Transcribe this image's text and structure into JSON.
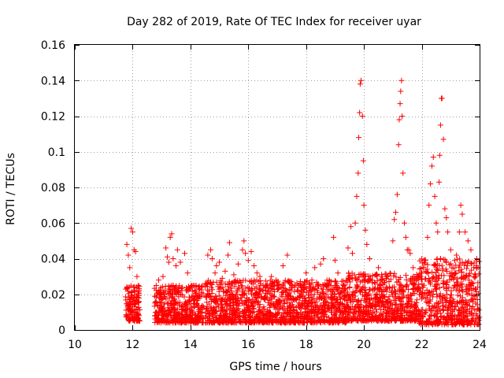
{
  "chart_data": {
    "type": "scatter",
    "title": "Day 282 of 2019, Rate Of TEC Index for receiver uyar",
    "xlabel": "GPS time / hours",
    "ylabel": "ROTI / TECUs",
    "xlim": [
      10,
      24
    ],
    "ylim": [
      0,
      0.16
    ],
    "x_ticks": [
      "10",
      "12",
      "14",
      "16",
      "18",
      "20",
      "22",
      "24"
    ],
    "y_ticks": [
      "0",
      "0.02",
      "0.04",
      "0.06",
      "0.08",
      "0.1",
      "0.12",
      "0.14",
      "0.16"
    ],
    "grid": true,
    "marker": "+",
    "series_color": "#ff0000",
    "series": [
      {
        "name": "ROTI",
        "points": [
          [
            11.8,
            0.048
          ],
          [
            11.85,
            0.042
          ],
          [
            11.9,
            0.035
          ],
          [
            11.95,
            0.057
          ],
          [
            12.0,
            0.055
          ],
          [
            12.05,
            0.045
          ],
          [
            12.1,
            0.044
          ],
          [
            12.15,
            0.03
          ],
          [
            12.2,
            0.025
          ],
          [
            12.9,
            0.028
          ],
          [
            13.05,
            0.03
          ],
          [
            13.15,
            0.046
          ],
          [
            13.2,
            0.041
          ],
          [
            13.25,
            0.038
          ],
          [
            13.3,
            0.052
          ],
          [
            13.35,
            0.054
          ],
          [
            13.4,
            0.04
          ],
          [
            13.5,
            0.036
          ],
          [
            13.55,
            0.045
          ],
          [
            13.65,
            0.038
          ],
          [
            13.8,
            0.043
          ],
          [
            13.9,
            0.032
          ],
          [
            14.6,
            0.042
          ],
          [
            14.7,
            0.045
          ],
          [
            14.75,
            0.04
          ],
          [
            14.85,
            0.032
          ],
          [
            14.9,
            0.036
          ],
          [
            15.0,
            0.038
          ],
          [
            15.1,
            0.029
          ],
          [
            15.2,
            0.033
          ],
          [
            15.3,
            0.042
          ],
          [
            15.35,
            0.049
          ],
          [
            15.5,
            0.031
          ],
          [
            15.65,
            0.037
          ],
          [
            15.8,
            0.045
          ],
          [
            15.85,
            0.05
          ],
          [
            15.9,
            0.043
          ],
          [
            16.0,
            0.039
          ],
          [
            16.1,
            0.044
          ],
          [
            16.2,
            0.036
          ],
          [
            16.3,
            0.032
          ],
          [
            16.4,
            0.03
          ],
          [
            16.6,
            0.022
          ],
          [
            16.8,
            0.03
          ],
          [
            17.0,
            0.025
          ],
          [
            17.2,
            0.036
          ],
          [
            17.35,
            0.042
          ],
          [
            17.5,
            0.027
          ],
          [
            17.8,
            0.025
          ],
          [
            18.0,
            0.032
          ],
          [
            18.2,
            0.028
          ],
          [
            18.3,
            0.035
          ],
          [
            18.5,
            0.037
          ],
          [
            18.6,
            0.04
          ],
          [
            18.8,
            0.028
          ],
          [
            18.95,
            0.052
          ],
          [
            19.0,
            0.039
          ],
          [
            19.1,
            0.032
          ],
          [
            19.3,
            0.025
          ],
          [
            19.45,
            0.046
          ],
          [
            19.55,
            0.058
          ],
          [
            19.6,
            0.043
          ],
          [
            19.7,
            0.06
          ],
          [
            19.75,
            0.075
          ],
          [
            19.8,
            0.088
          ],
          [
            19.82,
            0.108
          ],
          [
            19.85,
            0.122
          ],
          [
            19.87,
            0.138
          ],
          [
            19.9,
            0.14
          ],
          [
            19.95,
            0.12
          ],
          [
            19.98,
            0.095
          ],
          [
            20.0,
            0.07
          ],
          [
            20.05,
            0.056
          ],
          [
            20.1,
            0.048
          ],
          [
            20.2,
            0.04
          ],
          [
            20.5,
            0.035
          ],
          [
            20.8,
            0.03
          ],
          [
            21.0,
            0.05
          ],
          [
            21.05,
            0.062
          ],
          [
            21.1,
            0.066
          ],
          [
            21.15,
            0.076
          ],
          [
            21.2,
            0.104
          ],
          [
            21.22,
            0.118
          ],
          [
            21.25,
            0.127
          ],
          [
            21.27,
            0.134
          ],
          [
            21.3,
            0.14
          ],
          [
            21.32,
            0.12
          ],
          [
            21.35,
            0.088
          ],
          [
            21.4,
            0.06
          ],
          [
            21.45,
            0.052
          ],
          [
            21.5,
            0.045
          ],
          [
            21.55,
            0.045
          ],
          [
            21.6,
            0.043
          ],
          [
            21.7,
            0.035
          ],
          [
            21.9,
            0.03
          ],
          [
            22.0,
            0.032
          ],
          [
            22.1,
            0.038
          ],
          [
            22.2,
            0.052
          ],
          [
            22.25,
            0.07
          ],
          [
            22.3,
            0.082
          ],
          [
            22.35,
            0.092
          ],
          [
            22.4,
            0.097
          ],
          [
            22.45,
            0.075
          ],
          [
            22.5,
            0.06
          ],
          [
            22.55,
            0.055
          ],
          [
            22.6,
            0.083
          ],
          [
            22.62,
            0.098
          ],
          [
            22.65,
            0.115
          ],
          [
            22.68,
            0.13
          ],
          [
            22.7,
            0.13
          ],
          [
            22.75,
            0.107
          ],
          [
            22.8,
            0.068
          ],
          [
            22.85,
            0.063
          ],
          [
            22.9,
            0.055
          ],
          [
            23.0,
            0.045
          ],
          [
            23.2,
            0.042
          ],
          [
            23.3,
            0.055
          ],
          [
            23.35,
            0.07
          ],
          [
            23.4,
            0.065
          ],
          [
            23.5,
            0.055
          ],
          [
            23.6,
            0.05
          ],
          [
            23.7,
            0.045
          ],
          [
            23.8,
            0.035
          ],
          [
            23.9,
            0.04
          ],
          [
            23.95,
            0.035
          ]
        ]
      }
    ],
    "segments": [
      {
        "x_start": 11.75,
        "x_end": 12.25,
        "y_low": 0.005,
        "y_high": 0.025
      },
      {
        "x_start": 12.75,
        "x_end": 14.45,
        "y_low": 0.004,
        "y_high": 0.025
      },
      {
        "x_start": 14.5,
        "x_end": 19.4,
        "y_low": 0.004,
        "y_high": 0.028
      },
      {
        "x_start": 19.4,
        "x_end": 21.9,
        "y_low": 0.005,
        "y_high": 0.032
      },
      {
        "x_start": 21.9,
        "x_end": 24.0,
        "y_low": 0.003,
        "y_high": 0.04
      }
    ]
  }
}
